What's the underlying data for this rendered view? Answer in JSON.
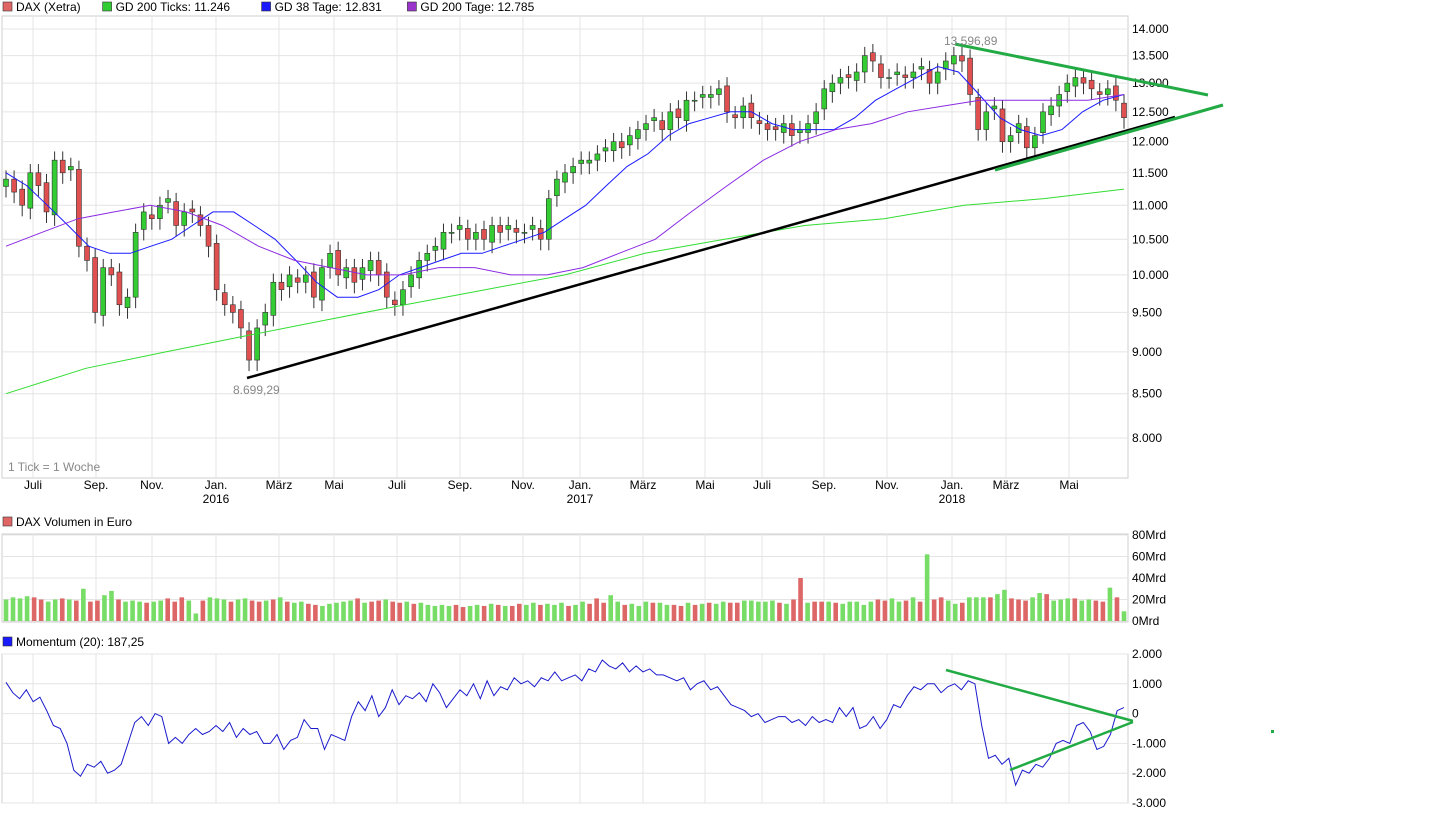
{
  "legend_main": [
    {
      "label": "DAX (Xetra)",
      "color": "#e06666"
    },
    {
      "label": "GD 200 Ticks: 11.246",
      "color": "#33cc33"
    },
    {
      "label": "GD 38 Tage: 12.831",
      "color": "#1a1aff"
    },
    {
      "label": "GD 200 Tage: 12.785",
      "color": "#9933cc"
    }
  ],
  "tick_note": "1 Tick = 1 Woche",
  "annotations": {
    "high": "13.596,89",
    "low": "8.699,29"
  },
  "volume_title": "DAX Volumen in Euro",
  "momentum_title": "Momentum (20): 187,25",
  "colors": {
    "up": "#33cc33",
    "down": "#e05050",
    "grid": "#e4e4e4",
    "trend_green": "#22aa44",
    "trend_black": "#000000",
    "ma38": "#1a1aff",
    "ma200d": "#8a2be2",
    "ma200t": "#33dd33"
  },
  "x_month_labels": [
    "Juli",
    "Sep.",
    "Nov.",
    "Jan.",
    "März",
    "Mai",
    "Juli",
    "Sep.",
    "Nov.",
    "Jan.",
    "März",
    "Mai",
    "Juli",
    "Sep.",
    "Nov.",
    "Jan.",
    "März",
    "Mai"
  ],
  "x_year_labels": [
    "2016",
    "2017",
    "2018"
  ],
  "chart_data": [
    {
      "type": "candlestick",
      "title": "DAX (Xetra)",
      "y_tick_labels": [
        "14.000",
        "13.500",
        "13.000",
        "12.500",
        "12.000",
        "11.500",
        "11.000",
        "10.500",
        "10.000",
        "9.500",
        "9.000",
        "8.500",
        "8.000"
      ],
      "yscale": "log",
      "ylim": [
        7500,
        14300
      ],
      "x_range": [
        "2015-06",
        "2018-06"
      ],
      "series": [
        {
          "name": "DAX (Xetra)",
          "values": [
            11400,
            11200,
            11000,
            11500,
            11300,
            10900,
            11700,
            11500,
            11600,
            10400,
            10200,
            9500,
            10100,
            10000,
            9600,
            9700,
            10600,
            10900,
            10800,
            11000,
            11100,
            10700,
            10900,
            10900,
            10700,
            10400,
            9800,
            9600,
            9500,
            9300,
            8900,
            9300,
            9500,
            9900,
            9800,
            10000,
            9900,
            10000,
            9700,
            10100,
            10300,
            10000,
            10100,
            9900,
            10100,
            10200,
            10000,
            9700,
            9600,
            9800,
            10000,
            10200,
            10300,
            10400,
            10600,
            10600,
            10700,
            10500,
            10600,
            10500,
            10700,
            10600,
            10700,
            10600,
            10600,
            10700,
            10500,
            11100,
            11400,
            11500,
            11600,
            11700,
            11700,
            11800,
            11900,
            12000,
            11900,
            12100,
            12200,
            12300,
            12400,
            12200,
            12500,
            12400,
            12700,
            12700,
            12800,
            12800,
            12900,
            12500,
            12400,
            12600,
            12400,
            12300,
            12200,
            12200,
            12300,
            12100,
            12200,
            12300,
            12500,
            12900,
            13000,
            13100,
            13100,
            13200,
            13500,
            13400,
            13100,
            13100,
            13200,
            13100,
            13200,
            13300,
            13000,
            13200,
            13400,
            13500,
            13400,
            12800,
            12200,
            12500,
            12600,
            12000,
            12100,
            12300,
            11900,
            12100,
            12500,
            12600,
            12800,
            13000,
            13100,
            13000,
            12900,
            12800,
            12900,
            12700,
            12400
          ]
        },
        {
          "name": "GD 38 Tage",
          "values": [
            11500,
            11300,
            11000,
            10700,
            10400,
            10300,
            10300,
            10400,
            10500,
            10700,
            10900,
            10900,
            10700,
            10500,
            10200,
            9900,
            9700,
            9700,
            9800,
            10000,
            10100,
            10200,
            10300,
            10300,
            10400,
            10500,
            10600,
            10800,
            11000,
            11300,
            11600,
            11800,
            12100,
            12300,
            12400,
            12500,
            12500,
            12300,
            12200,
            12200,
            12200,
            12400,
            12700,
            12900,
            13100,
            13300,
            13200,
            12800,
            12400,
            12200,
            12100,
            12200,
            12500,
            12700,
            12800
          ]
        },
        {
          "name": "GD 200 Tage",
          "values": [
            10400,
            10600,
            10800,
            10900,
            11000,
            10900,
            10700,
            10400,
            10200,
            10100,
            10000,
            10000,
            10100,
            10100,
            10000,
            10000,
            10100,
            10300,
            10500,
            10900,
            11300,
            11700,
            12000,
            12200,
            12300,
            12500,
            12600,
            12700,
            12700,
            12700,
            12700,
            12800
          ]
        },
        {
          "name": "GD 200 Ticks",
          "values": [
            8500,
            8800,
            9000,
            9200,
            9400,
            9600,
            9800,
            10000,
            10300,
            10500,
            10700,
            10800,
            11000,
            11100,
            11246
          ]
        }
      ]
    },
    {
      "type": "bar",
      "title": "DAX Volumen in Euro",
      "y_tick_labels": [
        "80Mrd",
        "60Mrd",
        "40Mrd",
        "20Mrd",
        "0Mrd"
      ],
      "ylim": [
        0,
        80
      ],
      "values": [
        20,
        22,
        21,
        23,
        22,
        20,
        18,
        20,
        21,
        20,
        19,
        30,
        18,
        19,
        24,
        28,
        20,
        18,
        19,
        18,
        17,
        18,
        19,
        21,
        18,
        22,
        19,
        7,
        19,
        22,
        21,
        20,
        18,
        20,
        21,
        19,
        18,
        19,
        20,
        22,
        18,
        17,
        18,
        16,
        15,
        14,
        16,
        17,
        18,
        19,
        21,
        17,
        18,
        19,
        20,
        18,
        17,
        18,
        16,
        17,
        15,
        14,
        15,
        14,
        15,
        13,
        14,
        15,
        14,
        16,
        15,
        14,
        14,
        16,
        15,
        17,
        15,
        16,
        15,
        17,
        14,
        15,
        18,
        16,
        21,
        17,
        24,
        18,
        15,
        16,
        14,
        18,
        17,
        17,
        15,
        15,
        14,
        17,
        15,
        16,
        17,
        16,
        18,
        17,
        17,
        19,
        19,
        18,
        18,
        19,
        17,
        16,
        20,
        40,
        17,
        18,
        18,
        18,
        17,
        16,
        18,
        18,
        15,
        18,
        20,
        19,
        21,
        18,
        19,
        22,
        18,
        62,
        20,
        22,
        19,
        16,
        17,
        22,
        22,
        22,
        22,
        25,
        29,
        21,
        20,
        19,
        22,
        26,
        25,
        19,
        20,
        21,
        21,
        19,
        20,
        19,
        18,
        31,
        22,
        9
      ],
      "up_down": "alternating colors by candle direction"
    },
    {
      "type": "line",
      "title": "Momentum (20)",
      "y_tick_labels": [
        "2.000",
        "1.000",
        "0",
        "-1.000",
        "-2.000",
        "-3.000"
      ],
      "ylim": [
        -3000,
        2000
      ],
      "values": [
        1050,
        700,
        500,
        800,
        400,
        550,
        100,
        -400,
        -500,
        -1000,
        -1900,
        -2100,
        -1700,
        -1800,
        -1600,
        -2000,
        -1900,
        -1700,
        -1000,
        -300,
        -100,
        -400,
        0,
        -100,
        -1000,
        -800,
        -1000,
        -700,
        -500,
        -700,
        -600,
        -400,
        -600,
        -300,
        -800,
        -500,
        -700,
        -600,
        -1000,
        -1000,
        -700,
        -1200,
        -900,
        -800,
        -200,
        -500,
        -500,
        -1200,
        -700,
        -800,
        -900,
        -100,
        400,
        100,
        600,
        -100,
        200,
        800,
        300,
        600,
        500,
        700,
        400,
        1000,
        700,
        200,
        500,
        800,
        600,
        1000,
        500,
        1100,
        600,
        900,
        800,
        1200,
        1000,
        1100,
        900,
        1200,
        1100,
        1400,
        1100,
        1200,
        1300,
        1100,
        1500,
        1400,
        1800,
        1600,
        1500,
        1700,
        1400,
        1600,
        1400,
        1500,
        1300,
        1300,
        1200,
        1100,
        1200,
        800,
        1000,
        1100,
        800,
        900,
        600,
        300,
        200,
        100,
        -100,
        0,
        -300,
        -200,
        -100,
        -100,
        -300,
        -200,
        -400,
        -100,
        -300,
        -200,
        -300,
        200,
        -100,
        200,
        -500,
        -400,
        -100,
        -500,
        -200,
        300,
        200,
        600,
        900,
        800,
        1000,
        1000,
        700,
        900,
        1000,
        800,
        1100,
        1000,
        -400,
        -1500,
        -1400,
        -1700,
        -1500,
        -2400,
        -1900,
        -2000,
        -1700,
        -1800,
        -1500,
        -1000,
        -900,
        -1000,
        -400,
        -300,
        -600,
        -1200,
        -1100,
        -700,
        100,
        200
      ]
    }
  ]
}
